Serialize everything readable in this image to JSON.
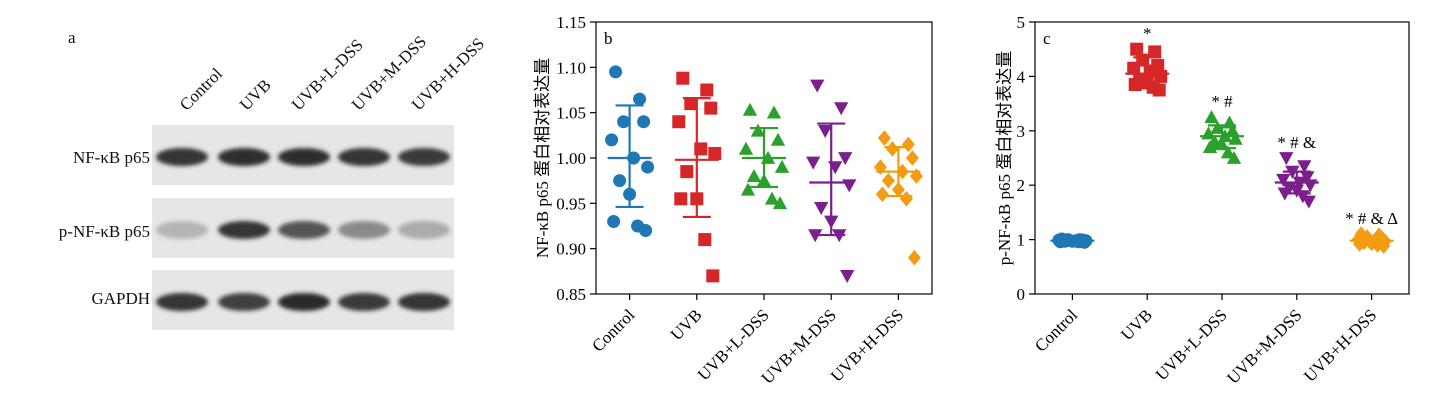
{
  "panel_a": {
    "letter": "a",
    "lanes": [
      "Control",
      "UVB",
      "UVB+L-DSS",
      "UVB+M-DSS",
      "UVB+H-DSS"
    ],
    "rows": [
      {
        "label": "NF-κB p65",
        "intensities": [
          0.85,
          0.88,
          0.88,
          0.85,
          0.82
        ]
      },
      {
        "label": "p-NF-κB p65",
        "intensities": [
          0.25,
          0.85,
          0.7,
          0.45,
          0.3
        ]
      },
      {
        "label": "GAPDH",
        "intensities": [
          0.85,
          0.8,
          0.9,
          0.82,
          0.85
        ]
      }
    ]
  },
  "chart_data": [
    {
      "type": "scatter",
      "letter": "b",
      "title": "",
      "ylabel": "NF-κB p65 蛋白相对表达量",
      "xlabel": "",
      "ylim": [
        0.85,
        1.15
      ],
      "yticks": [
        "0.85",
        "0.90",
        "0.95",
        "1.00",
        "1.05",
        "1.10",
        "1.15"
      ],
      "grid": false,
      "categories": [
        "Control",
        "UVB",
        "UVB+L-DSS",
        "UVB+M-DSS",
        "UVB+H-DSS"
      ],
      "series": [
        {
          "marker": "circle",
          "color": "#1f77b4",
          "mean": 1.0,
          "sd_upper": 1.058,
          "sd_lower": 0.946,
          "points": [
            1.095,
            1.065,
            1.04,
            1.04,
            1.02,
            1.0,
            0.99,
            0.975,
            0.96,
            0.93,
            0.925,
            0.92
          ]
        },
        {
          "marker": "square",
          "color": "#d62728",
          "mean": 0.998,
          "sd_upper": 1.066,
          "sd_lower": 0.935,
          "points": [
            1.088,
            1.075,
            1.06,
            1.055,
            1.04,
            1.01,
            1.005,
            0.985,
            0.955,
            0.955,
            0.91,
            0.87
          ]
        },
        {
          "marker": "triangle-up",
          "color": "#2ca02c",
          "mean": 1.0,
          "sd_upper": 1.033,
          "sd_lower": 0.968,
          "points": [
            1.053,
            1.05,
            1.03,
            1.02,
            1.01,
            1.0,
            0.99,
            0.98,
            0.975,
            0.965,
            0.955,
            0.95
          ]
        },
        {
          "marker": "triangle-down",
          "color": "#7b1f8c",
          "mean": 0.973,
          "sd_upper": 1.038,
          "sd_lower": 0.915,
          "points": [
            1.08,
            1.055,
            1.03,
            1.0,
            0.995,
            0.99,
            0.97,
            0.945,
            0.93,
            0.915,
            0.915,
            0.87
          ]
        },
        {
          "marker": "diamond",
          "color": "#f39c12",
          "mean": 0.985,
          "sd_upper": 1.012,
          "sd_lower": 0.958,
          "points": [
            1.022,
            1.015,
            1.01,
            1.0,
            0.99,
            0.985,
            0.98,
            0.975,
            0.965,
            0.96,
            0.955,
            0.89
          ]
        }
      ]
    },
    {
      "type": "scatter",
      "letter": "c",
      "title": "",
      "ylabel": "p-NF-κB p65 蛋白相对表达量",
      "xlabel": "",
      "ylim": [
        0,
        5
      ],
      "yticks": [
        "0",
        "1",
        "2",
        "3",
        "4",
        "5"
      ],
      "grid": false,
      "categories": [
        "Control",
        "UVB",
        "UVB+L-DSS",
        "UVB+M-DSS",
        "UVB+H-DSS"
      ],
      "annotations": [
        "",
        "*",
        "* #",
        "* # &",
        "* # & Δ"
      ],
      "series": [
        {
          "marker": "circle",
          "color": "#1f77b4",
          "mean": 0.98,
          "sd_upper": 1.0,
          "sd_lower": 0.96,
          "points": [
            1.01,
            1.0,
            1.0,
            0.99,
            0.99,
            0.98,
            0.98,
            0.97,
            0.97,
            0.96,
            0.96,
            0.95
          ]
        },
        {
          "marker": "square",
          "color": "#d62728",
          "mean": 4.05,
          "sd_upper": 4.35,
          "sd_lower": 3.78,
          "points": [
            4.5,
            4.45,
            4.3,
            4.2,
            4.15,
            4.1,
            4.0,
            3.95,
            3.9,
            3.85,
            3.8,
            3.75
          ]
        },
        {
          "marker": "triangle-up",
          "color": "#2ca02c",
          "mean": 2.9,
          "sd_upper": 3.1,
          "sd_lower": 2.68,
          "points": [
            3.25,
            3.15,
            3.05,
            3.0,
            2.95,
            2.9,
            2.85,
            2.8,
            2.75,
            2.7,
            2.6,
            2.5
          ]
        },
        {
          "marker": "triangle-down",
          "color": "#7b1f8c",
          "mean": 2.05,
          "sd_upper": 2.25,
          "sd_lower": 1.85,
          "points": [
            2.5,
            2.35,
            2.25,
            2.15,
            2.1,
            2.05,
            2.0,
            1.95,
            1.9,
            1.85,
            1.8,
            1.7
          ]
        },
        {
          "marker": "diamond",
          "color": "#f39c12",
          "mean": 0.98,
          "sd_upper": 1.05,
          "sd_lower": 0.9,
          "points": [
            1.1,
            1.08,
            1.05,
            1.02,
            1.0,
            0.98,
            0.97,
            0.95,
            0.93,
            0.92,
            0.9,
            0.88
          ]
        }
      ]
    }
  ]
}
